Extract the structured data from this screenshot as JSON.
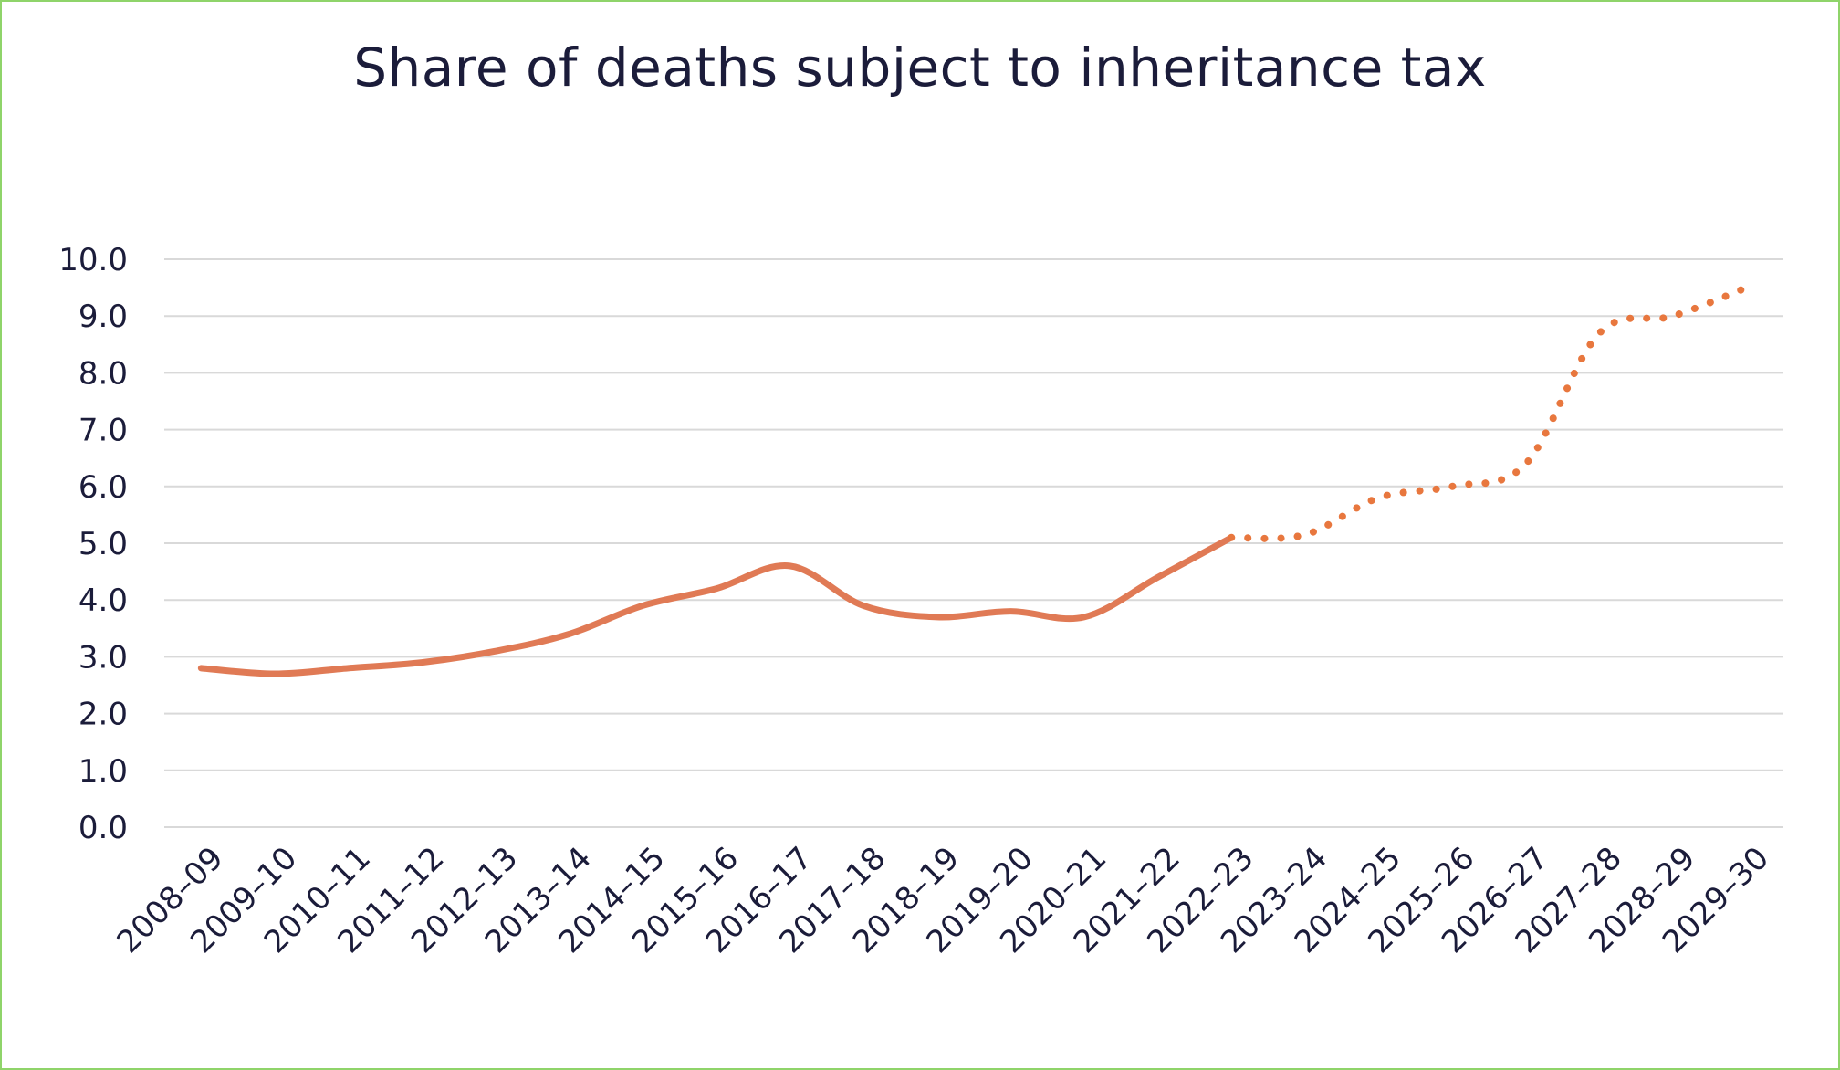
{
  "chart_data": {
    "type": "line",
    "title": "Share of deaths subject to inheritance tax",
    "xlabel": "",
    "ylabel": "",
    "ylim": [
      0,
      10
    ],
    "y_ticks": [
      "0.0",
      "1.0",
      "2.0",
      "3.0",
      "4.0",
      "5.0",
      "6.0",
      "7.0",
      "8.0",
      "9.0",
      "10.0"
    ],
    "grid": true,
    "categories": [
      "2008–09",
      "2009–10",
      "2010–11",
      "2011–12",
      "2012–13",
      "2013–14",
      "2014–15",
      "2015–16",
      "2016–17",
      "2017–18",
      "2018–19",
      "2019–20",
      "2020–21",
      "2021–22",
      "2022–23",
      "2023–24",
      "2024–25",
      "2025–26",
      "2026–27",
      "2027–28",
      "2028–29",
      "2029–30"
    ],
    "series": [
      {
        "style": "solid",
        "color": "#e07a55",
        "values": [
          2.8,
          2.7,
          2.8,
          2.9,
          3.1,
          3.4,
          3.9,
          4.2,
          4.6,
          3.9,
          3.7,
          3.8,
          3.7,
          4.4,
          5.1,
          null,
          null,
          null,
          null,
          null,
          null,
          null
        ]
      },
      {
        "style": "dotted",
        "color": "#e8773e",
        "values": [
          null,
          null,
          null,
          null,
          null,
          null,
          null,
          null,
          null,
          null,
          null,
          null,
          null,
          null,
          5.1,
          5.15,
          5.8,
          6.0,
          6.4,
          8.7,
          9.0,
          9.5
        ]
      }
    ]
  }
}
